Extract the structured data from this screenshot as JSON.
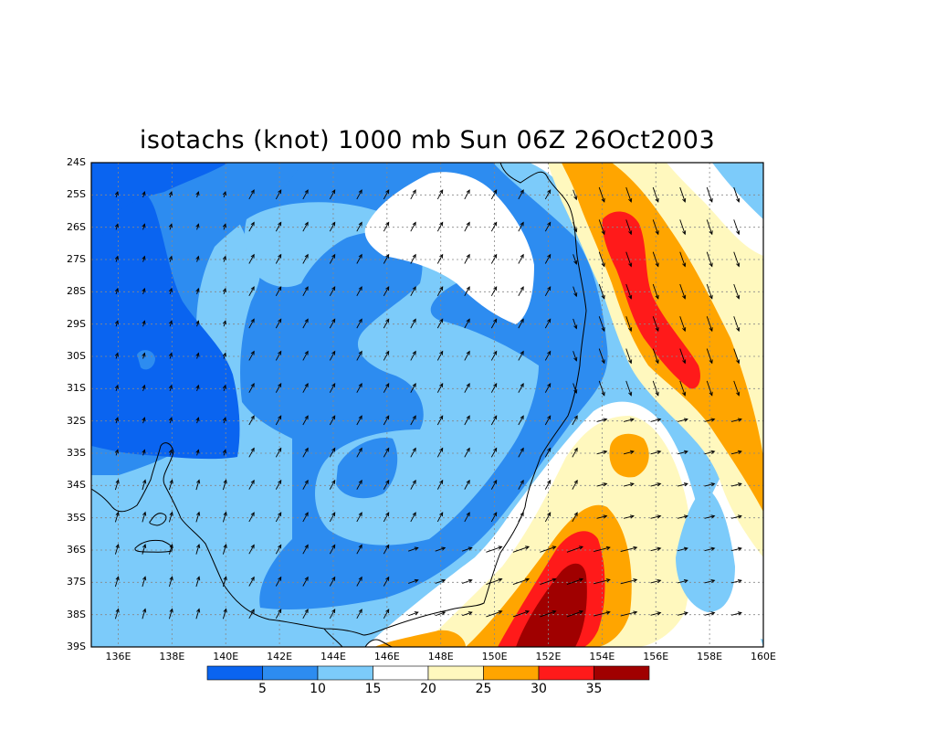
{
  "title": "isotachs (knot) 1000 mb Sun 06Z 26Oct2003",
  "lat_labels": [
    "24S",
    "25S",
    "26S",
    "27S",
    "28S",
    "29S",
    "30S",
    "31S",
    "32S",
    "33S",
    "34S",
    "35S",
    "36S",
    "37S",
    "38S",
    "39S"
  ],
  "lon_labels": [
    "136E",
    "138E",
    "140E",
    "142E",
    "144E",
    "146E",
    "148E",
    "150E",
    "152E",
    "154E",
    "156E",
    "158E",
    "160E"
  ],
  "colorbar": {
    "colors": [
      "#0a64f0",
      "#2d8cf0",
      "#7ccbfa",
      "#ffffff",
      "#fff8be",
      "#ffa500",
      "#ff1a1a",
      "#a00000"
    ],
    "labels": [
      "5",
      "10",
      "15",
      "20",
      "25",
      "30",
      "35"
    ]
  },
  "chart_data": {
    "type": "heatmap",
    "title": "isotachs (knot) 1000 mb Sun 06Z 26Oct2003",
    "xlabel": "",
    "ylabel": "",
    "xlim": [
      "135E",
      "160E"
    ],
    "ylim": [
      "39S",
      "24S"
    ],
    "levels": [
      5,
      10,
      15,
      20,
      25,
      30,
      35
    ],
    "grid": true,
    "overlays": [
      "wind vectors",
      "coastline"
    ]
  }
}
